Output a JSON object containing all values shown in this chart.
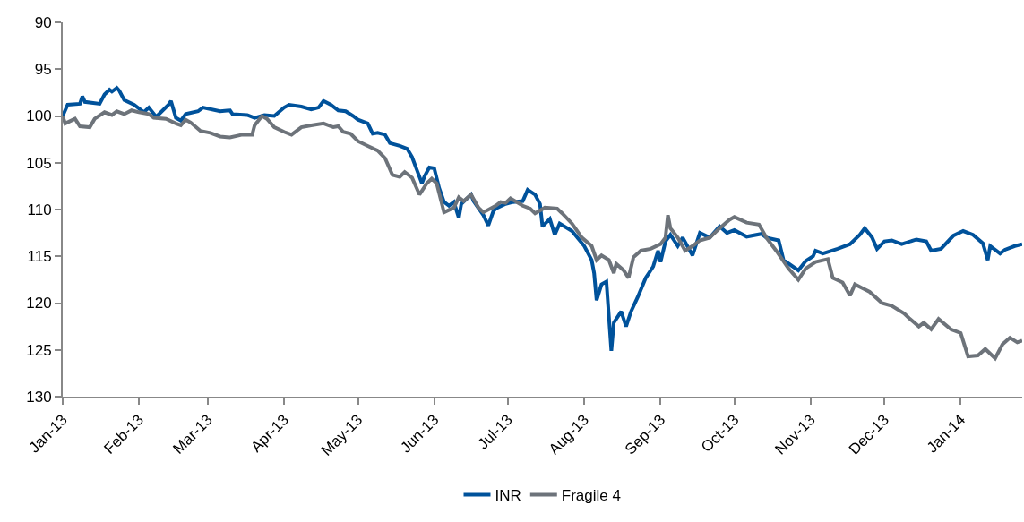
{
  "chart_data": {
    "type": "line",
    "legend": "bottom",
    "grid": false,
    "line_style": "solid",
    "marker": "none",
    "ylim": [
      130,
      90
    ],
    "yticks": [
      90,
      95,
      100,
      105,
      110,
      115,
      120,
      125,
      130
    ],
    "xlim": [
      "2013-01-01",
      "2014-01-26"
    ],
    "xticks": [
      {
        "value": "2013-01-01",
        "label": "Jan-13"
      },
      {
        "value": "2013-02-01",
        "label": "Feb-13"
      },
      {
        "value": "2013-03-01",
        "label": "Mar-13"
      },
      {
        "value": "2013-04-01",
        "label": "Apr-13"
      },
      {
        "value": "2013-05-01",
        "label": "May-13"
      },
      {
        "value": "2013-06-01",
        "label": "Jun-13"
      },
      {
        "value": "2013-07-01",
        "label": "Jul-13"
      },
      {
        "value": "2013-08-01",
        "label": "Aug-13"
      },
      {
        "value": "2013-09-01",
        "label": "Sep-13"
      },
      {
        "value": "2013-10-01",
        "label": "Oct-13"
      },
      {
        "value": "2013-11-01",
        "label": "Nov-13"
      },
      {
        "value": "2013-12-01",
        "label": "Dec-13"
      },
      {
        "value": "2014-01-01",
        "label": "Jan-14"
      }
    ],
    "series": [
      {
        "name": "INR",
        "color": "#00529b",
        "x": [
          "2013-01-01",
          "2013-01-03",
          "2013-01-08",
          "2013-01-09",
          "2013-01-10",
          "2013-01-16",
          "2013-01-18",
          "2013-01-20",
          "2013-01-21",
          "2013-01-23",
          "2013-01-24",
          "2013-01-26",
          "2013-01-30",
          "2013-02-03",
          "2013-02-05",
          "2013-02-08",
          "2013-02-13",
          "2013-02-14",
          "2013-02-16",
          "2013-02-18",
          "2013-02-20",
          "2013-02-25",
          "2013-02-27",
          "2013-03-06",
          "2013-03-10",
          "2013-03-11",
          "2013-03-17",
          "2013-03-20",
          "2013-03-24",
          "2013-03-28",
          "2013-04-01",
          "2013-04-03",
          "2013-04-08",
          "2013-04-12",
          "2013-04-15",
          "2013-04-17",
          "2013-04-20",
          "2013-04-23",
          "2013-04-26",
          "2013-04-29",
          "2013-05-01",
          "2013-05-05",
          "2013-05-07",
          "2013-05-09",
          "2013-05-12",
          "2013-05-14",
          "2013-05-18",
          "2013-05-21",
          "2013-05-23",
          "2013-05-25",
          "2013-05-27",
          "2013-05-28",
          "2013-05-30",
          "2013-06-01",
          "2013-06-03",
          "2013-06-05",
          "2013-06-07",
          "2013-06-09",
          "2013-06-11",
          "2013-06-12",
          "2013-06-16",
          "2013-06-17",
          "2013-06-21",
          "2013-06-23",
          "2013-06-25",
          "2013-06-26",
          "2013-06-30",
          "2013-07-03",
          "2013-07-07",
          "2013-07-09",
          "2013-07-12",
          "2013-07-14",
          "2013-07-15",
          "2013-07-18",
          "2013-07-20",
          "2013-07-22",
          "2013-07-27",
          "2013-08-01",
          "2013-08-04",
          "2013-08-05",
          "2013-08-06",
          "2013-08-08",
          "2013-08-10",
          "2013-08-12",
          "2013-08-13",
          "2013-08-16",
          "2013-08-18",
          "2013-08-20",
          "2013-08-23",
          "2013-08-26",
          "2013-08-29",
          "2013-08-31",
          "2013-09-01",
          "2013-09-03",
          "2013-09-05",
          "2013-09-08",
          "2013-09-10",
          "2013-09-14",
          "2013-09-17",
          "2013-09-21",
          "2013-09-25",
          "2013-09-28",
          "2013-10-01",
          "2013-10-06",
          "2013-10-12",
          "2013-10-14",
          "2013-10-19",
          "2013-10-21",
          "2013-10-27",
          "2013-10-30",
          "2013-11-02",
          "2013-11-03",
          "2013-11-06",
          "2013-11-12",
          "2013-11-17",
          "2013-11-21",
          "2013-11-23",
          "2013-11-26",
          "2013-11-28",
          "2013-12-01",
          "2013-12-04",
          "2013-12-08",
          "2013-12-14",
          "2013-12-18",
          "2013-12-20",
          "2013-12-24",
          "2013-12-29",
          "2014-01-02",
          "2014-01-06",
          "2014-01-10",
          "2014-01-12",
          "2014-01-13",
          "2014-01-17",
          "2014-01-19",
          "2014-01-23",
          "2014-01-26"
        ],
        "values": [
          100,
          98.8,
          98.7,
          97.9,
          98.5,
          98.7,
          97.7,
          97.2,
          97.4,
          97.0,
          97.3,
          98.3,
          98.8,
          99.6,
          99.1,
          100.1,
          98.8,
          98.4,
          100.2,
          100.5,
          99.8,
          99.5,
          99.1,
          99.5,
          99.4,
          99.8,
          99.9,
          100.2,
          99.9,
          100.0,
          99.1,
          98.8,
          99.0,
          99.3,
          99.1,
          98.4,
          98.8,
          99.4,
          99.5,
          100.0,
          100.4,
          100.8,
          101.9,
          101.8,
          102.0,
          102.9,
          103.2,
          103.5,
          104.4,
          105.8,
          107.2,
          106.5,
          105.5,
          105.6,
          107.7,
          109.2,
          109.6,
          109.2,
          110.9,
          109.4,
          108.4,
          109.1,
          110.6,
          111.7,
          110.2,
          109.9,
          109.4,
          109.2,
          109.1,
          107.9,
          108.4,
          109.4,
          111.8,
          111.0,
          112.7,
          111.5,
          112.3,
          113.9,
          115.4,
          116.8,
          119.7,
          118.0,
          117.7,
          125.1,
          122.1,
          120.9,
          122.5,
          120.9,
          119.2,
          117.3,
          116.1,
          114.4,
          115.6,
          113.4,
          112.7,
          113.9,
          113.0,
          114.9,
          112.5,
          113.0,
          111.8,
          112.5,
          112.2,
          112.9,
          112.6,
          113.0,
          113.3,
          115.4,
          116.5,
          115.5,
          115.0,
          114.4,
          114.7,
          114.2,
          113.7,
          112.7,
          112.0,
          113.0,
          114.2,
          113.4,
          113.3,
          113.7,
          113.2,
          113.4,
          114.4,
          114.2,
          112.8,
          112.3,
          112.7,
          113.6,
          115.4,
          113.9,
          114.7,
          114.3,
          113.9,
          113.7
        ]
      },
      {
        "name": "Fragile 4",
        "color": "#6d737a",
        "x": [
          "2013-01-01",
          "2013-01-02",
          "2013-01-06",
          "2013-01-08",
          "2013-01-12",
          "2013-01-14",
          "2013-01-18",
          "2013-01-21",
          "2013-01-23",
          "2013-01-26",
          "2013-01-29",
          "2013-02-01",
          "2013-02-05",
          "2013-02-07",
          "2013-02-12",
          "2013-02-16",
          "2013-02-18",
          "2013-02-20",
          "2013-02-22",
          "2013-02-26",
          "2013-03-02",
          "2013-03-06",
          "2013-03-10",
          "2013-03-15",
          "2013-03-19",
          "2013-03-20",
          "2013-03-23",
          "2013-03-25",
          "2013-03-28",
          "2013-04-01",
          "2013-04-04",
          "2013-04-08",
          "2013-04-12",
          "2013-04-17",
          "2013-04-21",
          "2013-04-23",
          "2013-04-25",
          "2013-04-28",
          "2013-05-01",
          "2013-05-05",
          "2013-05-09",
          "2013-05-12",
          "2013-05-15",
          "2013-05-18",
          "2013-05-20",
          "2013-05-23",
          "2013-05-26",
          "2013-05-29",
          "2013-05-31",
          "2013-06-02",
          "2013-06-05",
          "2013-06-09",
          "2013-06-11",
          "2013-06-13",
          "2013-06-16",
          "2013-06-19",
          "2013-06-21",
          "2013-06-26",
          "2013-06-28",
          "2013-06-30",
          "2013-07-02",
          "2013-07-07",
          "2013-07-10",
          "2013-07-12",
          "2013-07-16",
          "2013-07-21",
          "2013-07-23",
          "2013-07-27",
          "2013-07-31",
          "2013-08-04",
          "2013-08-06",
          "2013-08-08",
          "2013-08-11",
          "2013-08-13",
          "2013-08-14",
          "2013-08-17",
          "2013-08-19",
          "2013-08-21",
          "2013-08-24",
          "2013-08-28",
          "2013-09-01",
          "2013-09-03",
          "2013-09-04",
          "2013-09-05",
          "2013-09-08",
          "2013-09-11",
          "2013-09-14",
          "2013-09-17",
          "2013-09-21",
          "2013-09-25",
          "2013-09-29",
          "2013-10-01",
          "2013-10-06",
          "2013-10-11",
          "2013-10-14",
          "2013-10-18",
          "2013-10-23",
          "2013-10-27",
          "2013-10-30",
          "2013-11-03",
          "2013-11-08",
          "2013-11-10",
          "2013-11-14",
          "2013-11-17",
          "2013-11-19",
          "2013-11-22",
          "2013-11-25",
          "2013-11-30",
          "2013-12-04",
          "2013-12-09",
          "2013-12-11",
          "2013-12-15",
          "2013-12-17",
          "2013-12-20",
          "2013-12-23",
          "2013-12-28",
          "2014-01-01",
          "2014-01-04",
          "2014-01-08",
          "2014-01-11",
          "2014-01-13",
          "2014-01-15",
          "2014-01-18",
          "2014-01-21",
          "2014-01-24",
          "2014-01-26"
        ],
        "values": [
          100,
          100.8,
          100.3,
          101.1,
          101.2,
          100.3,
          99.6,
          99.9,
          99.5,
          99.8,
          99.4,
          99.6,
          99.8,
          100.2,
          100.3,
          100.8,
          101.0,
          100.4,
          100.7,
          101.6,
          101.8,
          102.2,
          102.3,
          102.0,
          102.0,
          101.0,
          100.0,
          100.3,
          101.2,
          101.7,
          102.0,
          101.2,
          101.0,
          100.8,
          101.2,
          101.1,
          101.7,
          101.9,
          102.7,
          103.2,
          103.7,
          104.5,
          106.3,
          106.5,
          106.0,
          106.6,
          108.4,
          107.2,
          106.7,
          107.2,
          110.3,
          109.8,
          108.7,
          109.1,
          108.4,
          109.8,
          110.3,
          109.6,
          109.2,
          109.3,
          108.8,
          109.6,
          109.9,
          110.4,
          109.8,
          109.9,
          110.4,
          111.5,
          113.0,
          113.9,
          115.4,
          114.9,
          115.4,
          116.8,
          115.8,
          116.5,
          117.3,
          115.1,
          114.4,
          114.2,
          113.7,
          113.0,
          110.6,
          112.0,
          113.0,
          114.4,
          113.9,
          113.3,
          113.0,
          112.0,
          111.1,
          110.8,
          111.4,
          111.6,
          113.0,
          114.4,
          116.3,
          117.5,
          116.3,
          115.6,
          115.3,
          117.3,
          117.8,
          119.2,
          118.0,
          118.4,
          118.8,
          120.0,
          120.3,
          121.1,
          121.6,
          122.5,
          122.1,
          122.8,
          121.7,
          122.8,
          123.2,
          125.7,
          125.6,
          124.9,
          125.4,
          125.9,
          124.4,
          123.7,
          124.2,
          124.0
        ]
      }
    ]
  }
}
